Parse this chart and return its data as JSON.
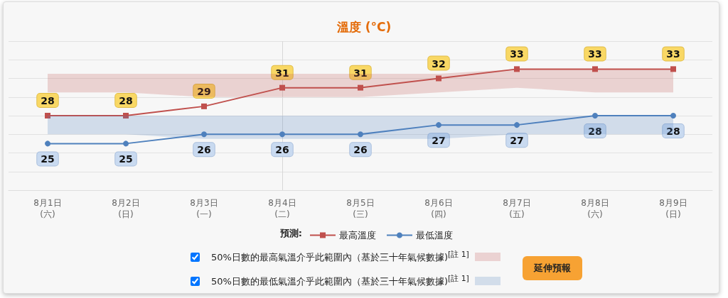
{
  "chart_data": {
    "type": "line",
    "title": "溫度 (°C)",
    "legend_title": "預測:",
    "categories": [
      "8月1日\n(六)",
      "8月2日\n(日)",
      "8月3日\n(一)",
      "8月4日\n(二)",
      "8月5日\n(三)",
      "8月6日\n(四)",
      "8月7日\n(五)",
      "8月8日\n(六)",
      "8月9日\n(日)"
    ],
    "series": [
      {
        "name": "最高溫度",
        "color": "#c0504d",
        "marker": "square",
        "values": [
          28,
          28,
          29,
          31,
          31,
          32,
          33,
          33,
          33
        ],
        "lower": [
          30.5,
          30.5,
          30,
          30,
          30,
          30.5,
          31,
          30.5,
          30.5
        ],
        "upper": [
          32.5,
          32.5,
          32.5,
          32.5,
          32.5,
          32.5,
          33,
          33,
          33
        ]
      },
      {
        "name": "最低溫度",
        "color": "#4f81bd",
        "marker": "circle",
        "values": [
          25,
          25,
          26,
          26,
          26,
          27,
          27,
          28,
          28
        ],
        "lower": [
          26,
          26,
          25.5,
          25.5,
          25.5,
          25.5,
          26,
          26,
          26
        ],
        "upper": [
          28,
          28,
          28,
          28,
          28,
          28,
          28,
          28,
          28
        ]
      }
    ],
    "ylim": [
      20,
      36
    ],
    "yticks": [
      {
        "value": 20,
        "label": null
      },
      {
        "value": 22,
        "label": null
      },
      {
        "value": 24,
        "label": null
      },
      {
        "value": 26,
        "label": null
      },
      {
        "value": 28,
        "label": null
      },
      {
        "value": 30,
        "label": null
      },
      {
        "value": 32,
        "label": null
      },
      {
        "value": 34,
        "label": null
      },
      {
        "value": 36,
        "label": null
      }
    ],
    "tick_labels": "x",
    "grid": "y",
    "legend": "bottom",
    "data_labels": true,
    "line_style": "solid",
    "ref_lines": [
      {
        "axis": "x",
        "value": "8月4日\n(二)",
        "color": "#d8d8d8"
      }
    ],
    "annotations": [
      "50%日數的最高氣溫介乎此範圍內（基於三十年氣候數據)$^{[註 1]}$",
      "50%日數的最低氣溫介乎此範圍內（基於三十年氣候數據)$^{[註 1]}$",
      "延伸預報"
    ]
  }
}
